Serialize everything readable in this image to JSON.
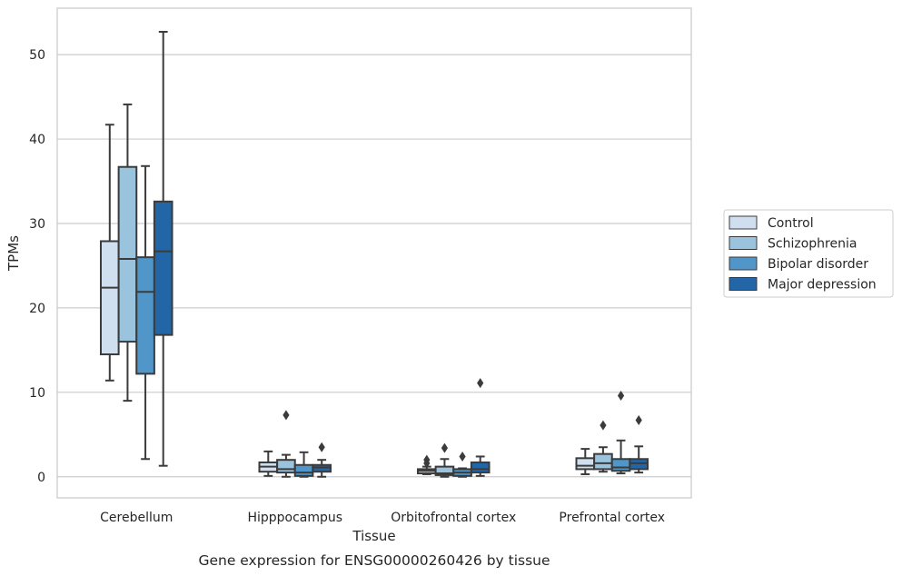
{
  "chart_data": {
    "type": "box",
    "title": "",
    "caption": "Gene expression for ENSG00000260426 by tissue",
    "xlabel": "Tissue",
    "ylabel": "TPMs",
    "ylim": [
      -2.5,
      55.5
    ],
    "yticks": [
      0,
      10,
      20,
      30,
      40,
      50
    ],
    "grid": "horizontal",
    "legend_position": "right, outside",
    "categories": [
      "Cerebellum",
      "Hipppocampus",
      "Orbitofrontal cortex",
      "Prefrontal cortex"
    ],
    "series": [
      {
        "name": "Control",
        "color": "#cfdff0",
        "boxes": [
          {
            "whislo": 11.4,
            "q1": 14.5,
            "med": 22.4,
            "q3": 27.9,
            "whishi": 41.7,
            "fliers": []
          },
          {
            "whislo": 0.1,
            "q1": 0.6,
            "med": 1.2,
            "q3": 1.7,
            "whishi": 3.0,
            "fliers": []
          },
          {
            "whislo": 0.3,
            "q1": 0.4,
            "med": 0.7,
            "q3": 0.9,
            "whishi": 1.2,
            "fliers": [
              1.6,
              2.0
            ]
          },
          {
            "whislo": 0.3,
            "q1": 0.9,
            "med": 1.3,
            "q3": 2.2,
            "whishi": 3.3,
            "fliers": []
          }
        ]
      },
      {
        "name": "Schizophrenia",
        "color": "#9ac3de",
        "boxes": [
          {
            "whislo": 9.0,
            "q1": 16.0,
            "med": 25.8,
            "q3": 36.7,
            "whishi": 44.1,
            "fliers": []
          },
          {
            "whislo": 0.0,
            "q1": 0.5,
            "med": 0.9,
            "q3": 2.0,
            "whishi": 2.6,
            "fliers": [
              7.3
            ]
          },
          {
            "whislo": 0.0,
            "q1": 0.2,
            "med": 0.4,
            "q3": 1.2,
            "whishi": 2.1,
            "fliers": [
              3.4
            ]
          },
          {
            "whislo": 0.6,
            "q1": 0.9,
            "med": 1.6,
            "q3": 2.7,
            "whishi": 3.5,
            "fliers": [
              6.1
            ]
          }
        ]
      },
      {
        "name": "Bipolar disorder",
        "color": "#5096c8",
        "boxes": [
          {
            "whislo": 2.1,
            "q1": 12.2,
            "med": 21.9,
            "q3": 26.0,
            "whishi": 36.8,
            "fliers": []
          },
          {
            "whislo": 0.0,
            "q1": 0.1,
            "med": 0.5,
            "q3": 1.4,
            "whishi": 2.9,
            "fliers": []
          },
          {
            "whislo": 0.0,
            "q1": 0.1,
            "med": 0.5,
            "q3": 0.9,
            "whishi": 1.0,
            "fliers": [
              2.4
            ]
          },
          {
            "whislo": 0.4,
            "q1": 0.7,
            "med": 1.1,
            "q3": 2.1,
            "whishi": 4.3,
            "fliers": [
              9.6
            ]
          }
        ]
      },
      {
        "name": "Major depression",
        "color": "#2366a8",
        "boxes": [
          {
            "whislo": 1.3,
            "q1": 16.8,
            "med": 26.7,
            "q3": 32.6,
            "whishi": 52.7,
            "fliers": []
          },
          {
            "whislo": 0.0,
            "q1": 0.6,
            "med": 1.1,
            "q3": 1.4,
            "whishi": 2.0,
            "fliers": [
              3.5
            ]
          },
          {
            "whislo": 0.1,
            "q1": 0.5,
            "med": 0.9,
            "q3": 1.7,
            "whishi": 2.4,
            "fliers": [
              11.1
            ]
          },
          {
            "whislo": 0.5,
            "q1": 0.9,
            "med": 1.6,
            "q3": 2.1,
            "whishi": 3.6,
            "fliers": [
              6.7
            ]
          }
        ]
      }
    ]
  }
}
